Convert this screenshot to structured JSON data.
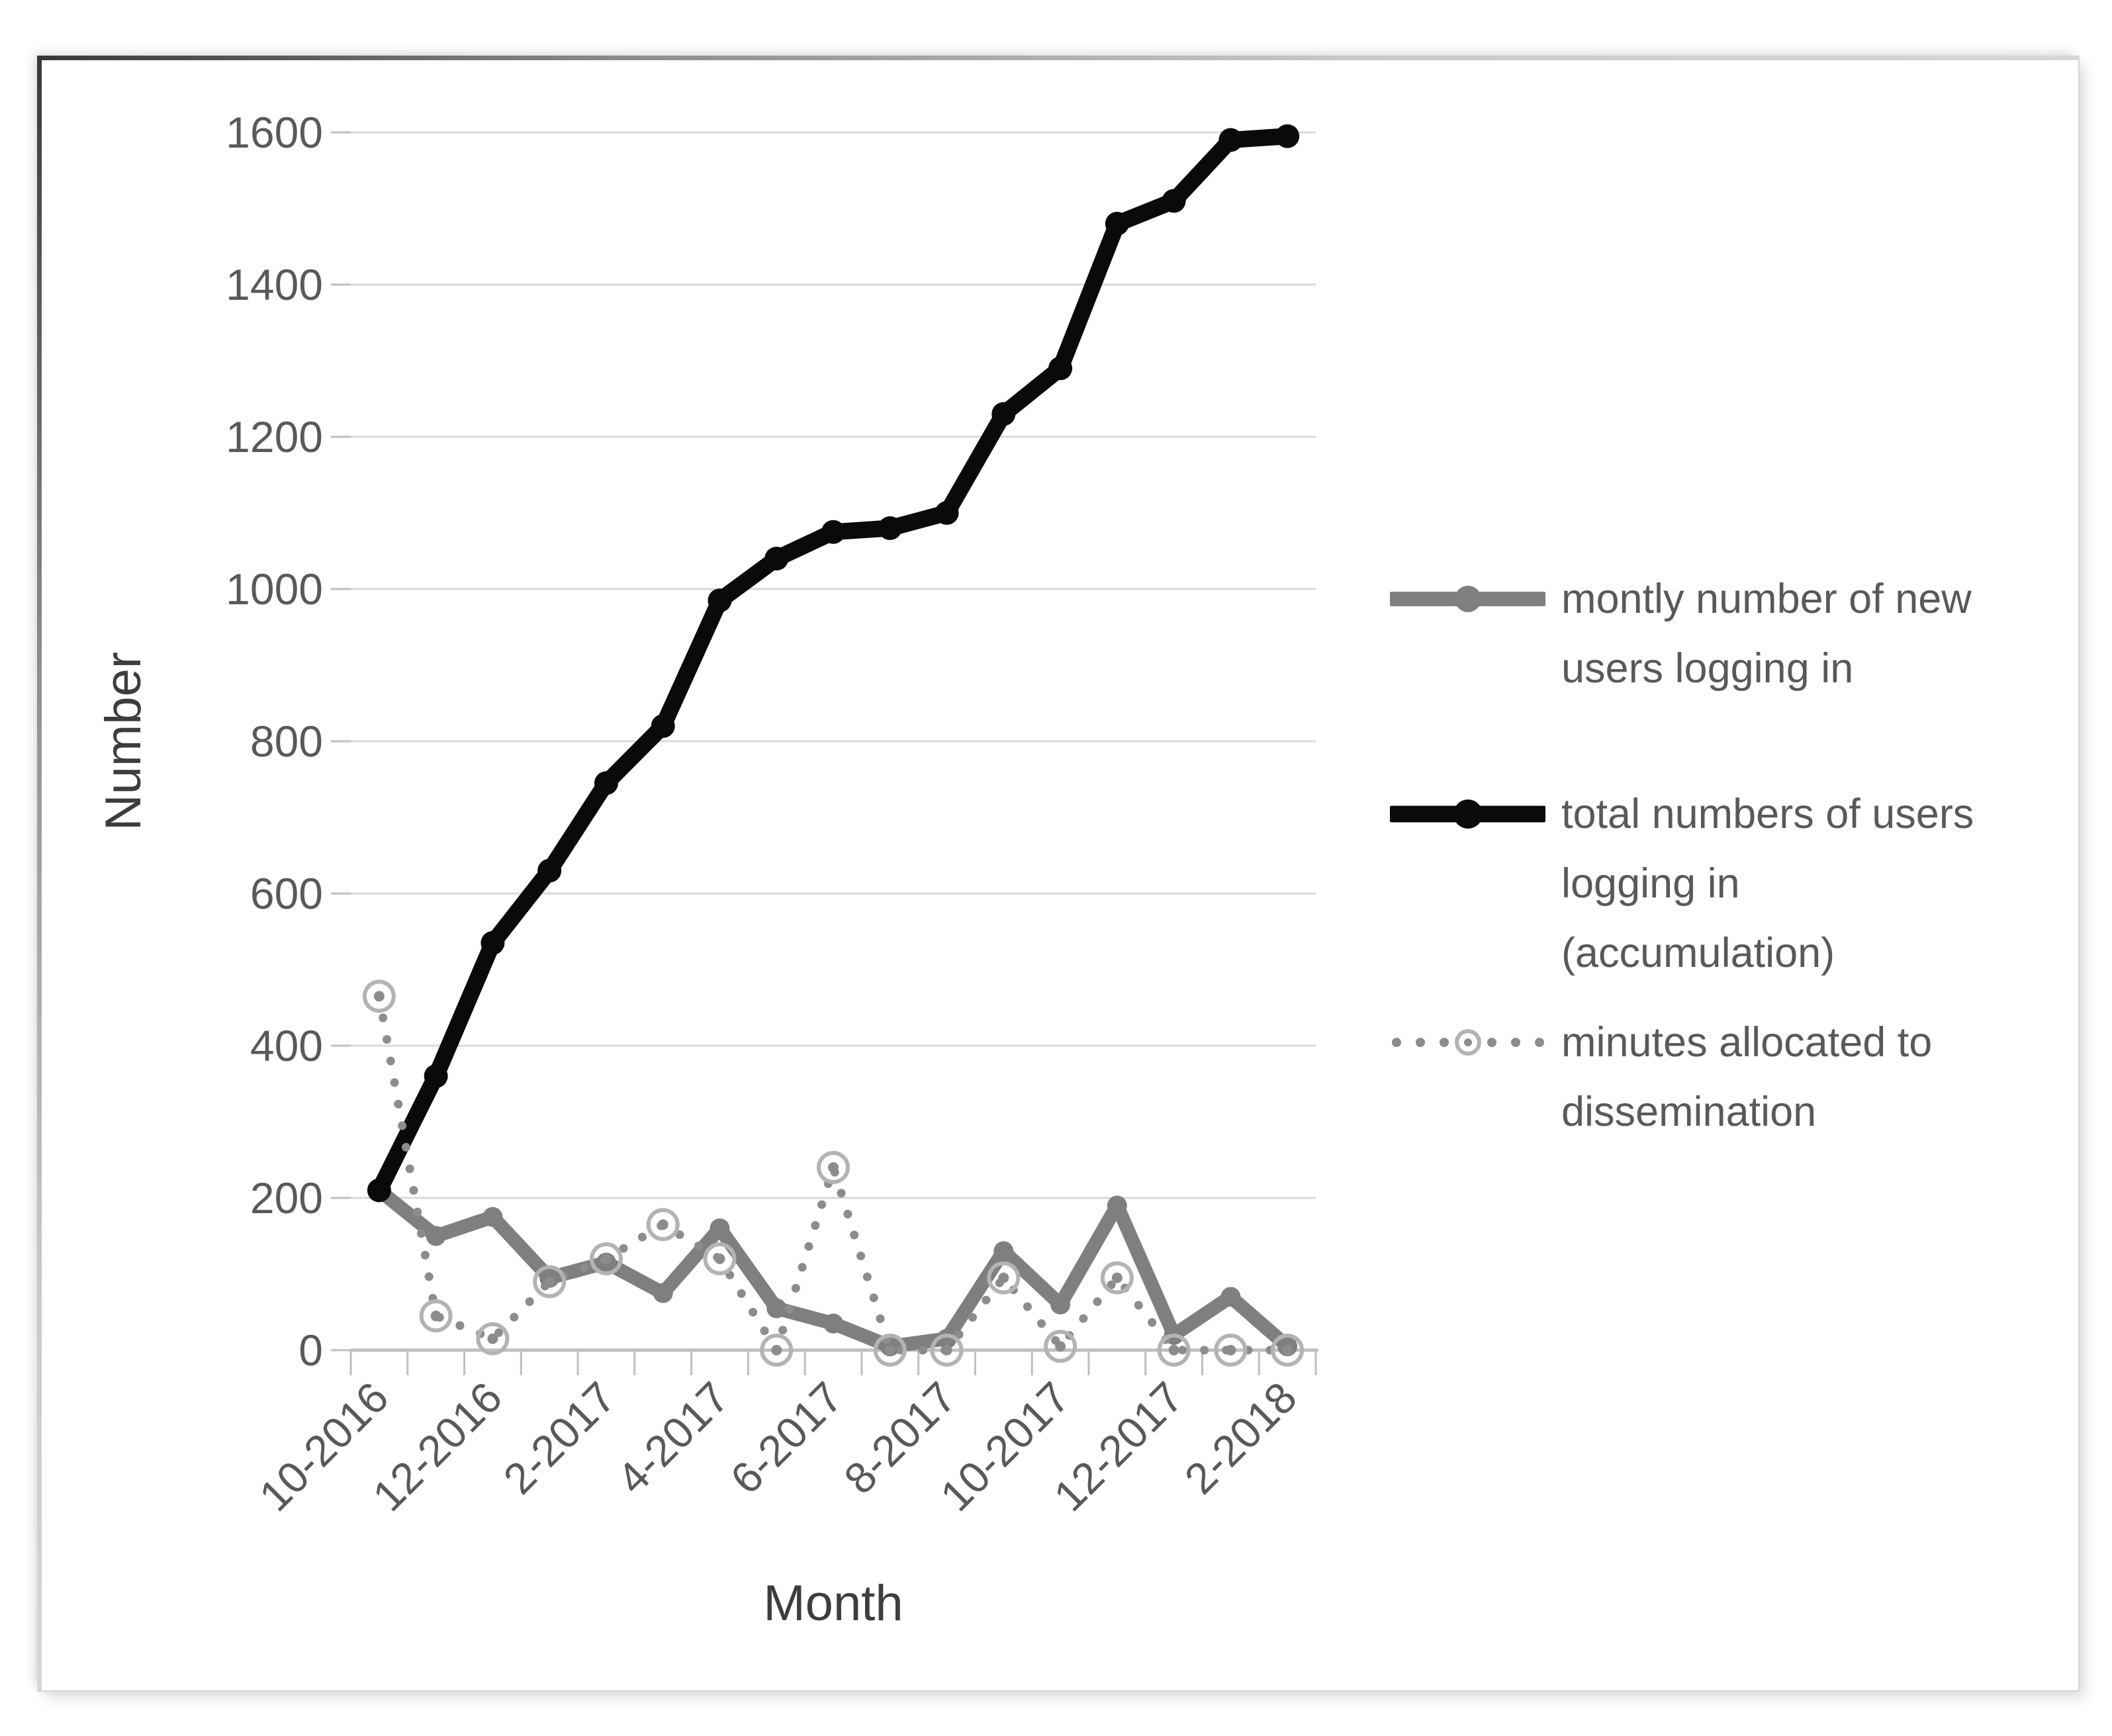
{
  "figure": {
    "y_axis_title": "Number",
    "x_axis_title": "Month"
  },
  "legend": {
    "items": [
      {
        "series": "monthly-new-users",
        "lines": [
          "montly number of new",
          "users logging in"
        ]
      },
      {
        "series": "total-users-accumulation",
        "lines": [
          "total numbers of users",
          "logging in",
          "(accumulation)"
        ]
      },
      {
        "series": "minutes-dissemination",
        "lines": [
          "minutes allocated to",
          "dissemination"
        ]
      }
    ]
  },
  "chart_data": {
    "type": "line",
    "title": "",
    "xlabel": "Month",
    "ylabel": "Number",
    "categories": [
      "10-2016",
      "11-2016",
      "12-2016",
      "1-2017",
      "2-2017",
      "3-2017",
      "4-2017",
      "5-2017",
      "6-2017",
      "7-2017",
      "8-2017",
      "9-2017",
      "10-2017",
      "11-2017",
      "12-2017",
      "1-2018",
      "2-2018"
    ],
    "x_tick_labels_shown": [
      "10-2016",
      "12-2016",
      "2-2017",
      "4-2017",
      "6-2017",
      "8-2017",
      "10-2017",
      "12-2017",
      "2-2018"
    ],
    "y_ticks": [
      0,
      200,
      400,
      600,
      800,
      1000,
      1200,
      1400,
      1600
    ],
    "ylim": [
      0,
      1600
    ],
    "grid": "horizontal",
    "legend_position": "right",
    "series": [
      {
        "name": "montly number of new users logging in",
        "line_style": "solid",
        "marker": "filled-circle",
        "color": "#7f7f7f",
        "values": [
          210,
          150,
          175,
          95,
          115,
          75,
          160,
          55,
          35,
          5,
          15,
          130,
          60,
          190,
          20,
          70,
          5
        ]
      },
      {
        "name": "total numbers of users logging in (accumulation)",
        "line_style": "solid",
        "marker": "filled-circle",
        "color": "#0a0a0a",
        "values": [
          210,
          360,
          535,
          630,
          745,
          820,
          985,
          1040,
          1075,
          1080,
          1100,
          1230,
          1290,
          1480,
          1510,
          1590,
          1595
        ]
      },
      {
        "name": "minutes allocated to dissemination",
        "line_style": "round-dotted",
        "marker": "open-circle",
        "color": "#8c8c8c",
        "marker_ring_color": "#b3b3b3",
        "values": [
          465,
          45,
          15,
          90,
          120,
          165,
          120,
          0,
          240,
          0,
          0,
          95,
          5,
          95,
          0,
          0,
          0
        ]
      }
    ],
    "colors": {
      "gridline": "#d9d9d9",
      "axis": "#bfbfbf",
      "tick_text": "#595959",
      "title_text": "#3d3d3d"
    }
  }
}
